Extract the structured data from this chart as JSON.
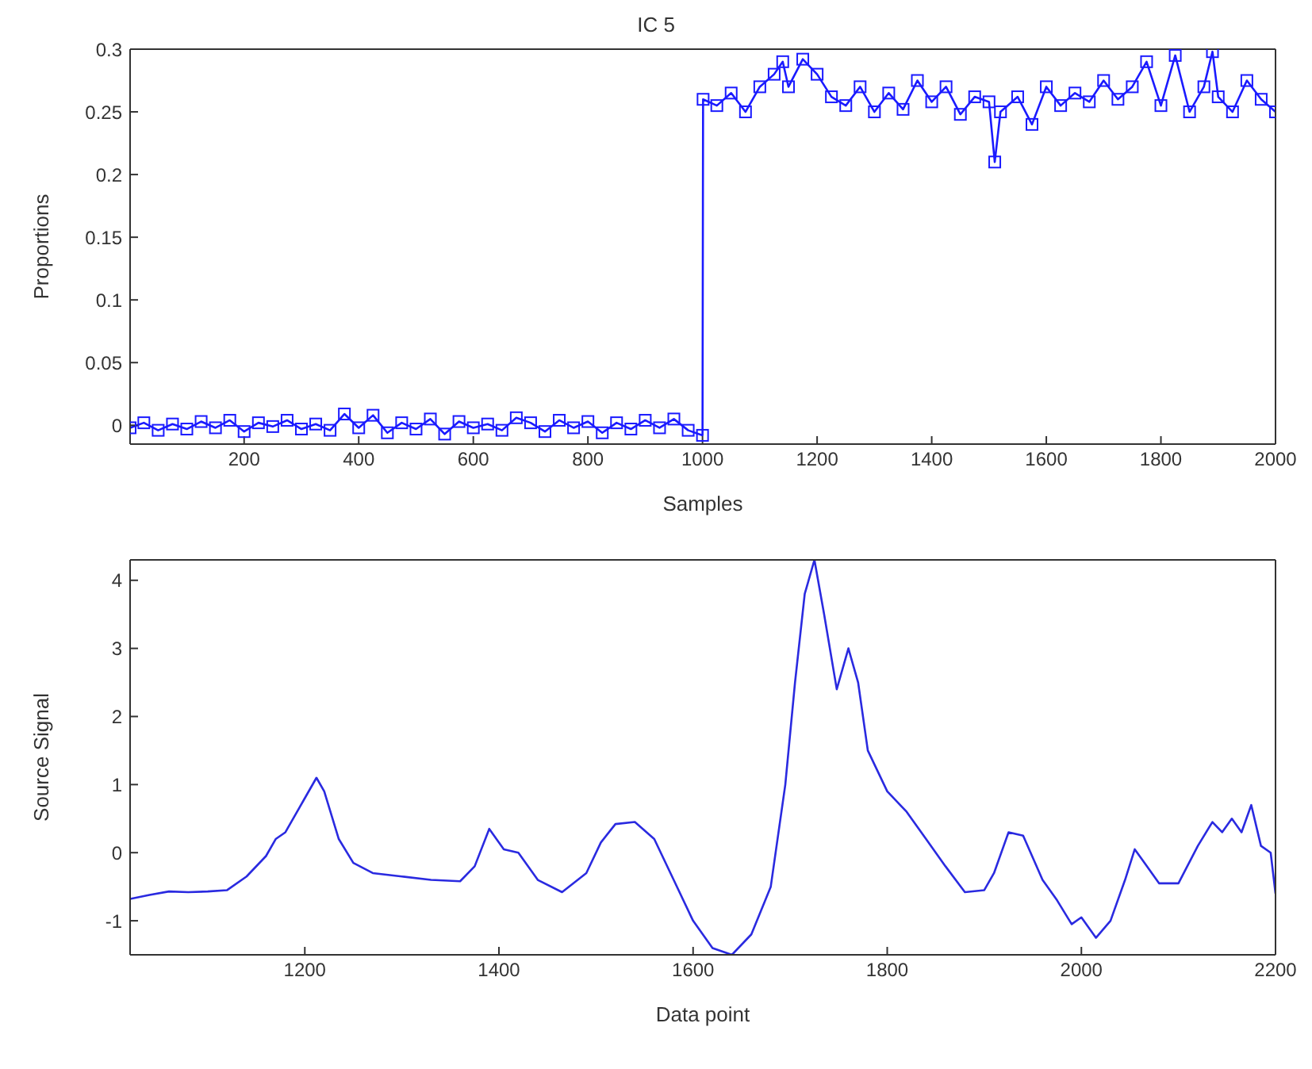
{
  "chart_data": [
    {
      "type": "line",
      "title": "IC 5",
      "xlabel": "Samples",
      "ylabel": "Proportions",
      "marker": "square",
      "xlim": [
        1,
        2000
      ],
      "xticks": [
        200,
        400,
        600,
        800,
        1000,
        1200,
        1400,
        1600,
        1800,
        2000
      ],
      "ylim": [
        -0.015,
        0.3
      ],
      "yticks": [
        0,
        0.05,
        0.1,
        0.15,
        0.2,
        0.25,
        0.3
      ],
      "series": [
        {
          "color": "#1a1aff",
          "x": [
            1,
            25,
            50,
            75,
            100,
            125,
            150,
            175,
            200,
            225,
            250,
            275,
            300,
            325,
            350,
            375,
            400,
            425,
            450,
            475,
            500,
            525,
            550,
            575,
            600,
            625,
            650,
            675,
            700,
            725,
            750,
            775,
            800,
            825,
            850,
            875,
            900,
            925,
            950,
            975,
            1000,
            1001,
            1025,
            1050,
            1075,
            1100,
            1125,
            1140,
            1150,
            1175,
            1200,
            1225,
            1250,
            1275,
            1300,
            1325,
            1350,
            1375,
            1400,
            1425,
            1450,
            1475,
            1500,
            1510,
            1520,
            1550,
            1575,
            1600,
            1625,
            1650,
            1675,
            1700,
            1725,
            1750,
            1775,
            1800,
            1825,
            1850,
            1875,
            1890,
            1900,
            1925,
            1950,
            1975,
            2000
          ],
          "values": [
            -0.002,
            0.002,
            -0.004,
            0.001,
            -0.003,
            0.003,
            -0.002,
            0.004,
            -0.005,
            0.002,
            -0.001,
            0.004,
            -0.003,
            0.001,
            -0.004,
            0.009,
            -0.002,
            0.008,
            -0.006,
            0.002,
            -0.003,
            0.005,
            -0.007,
            0.003,
            -0.002,
            0.001,
            -0.004,
            0.006,
            0.002,
            -0.005,
            0.004,
            -0.002,
            0.003,
            -0.006,
            0.002,
            -0.003,
            0.004,
            -0.002,
            0.005,
            -0.004,
            -0.008,
            0.26,
            0.255,
            0.265,
            0.25,
            0.27,
            0.28,
            0.29,
            0.27,
            0.292,
            0.28,
            0.262,
            0.255,
            0.27,
            0.25,
            0.265,
            0.252,
            0.275,
            0.258,
            0.27,
            0.248,
            0.262,
            0.258,
            0.21,
            0.25,
            0.262,
            0.24,
            0.27,
            0.255,
            0.265,
            0.258,
            0.275,
            0.26,
            0.27,
            0.29,
            0.255,
            0.295,
            0.25,
            0.27,
            0.298,
            0.262,
            0.25,
            0.275,
            0.26,
            0.25
          ]
        }
      ]
    },
    {
      "type": "line",
      "xlabel": "Data point",
      "ylabel": "Source Signal",
      "xlim": [
        1020,
        2200
      ],
      "xticks": [
        1200,
        1400,
        1600,
        1800,
        2000,
        2200
      ],
      "ylim": [
        -1.5,
        4.3
      ],
      "yticks": [
        -1,
        0,
        1,
        2,
        3,
        4
      ],
      "series": [
        {
          "color": "#2a2ae0",
          "x": [
            1020,
            1040,
            1060,
            1080,
            1100,
            1120,
            1140,
            1160,
            1170,
            1180,
            1200,
            1212,
            1220,
            1235,
            1250,
            1270,
            1300,
            1330,
            1360,
            1375,
            1390,
            1405,
            1420,
            1440,
            1465,
            1490,
            1505,
            1520,
            1540,
            1560,
            1580,
            1600,
            1620,
            1640,
            1660,
            1680,
            1695,
            1705,
            1715,
            1725,
            1735,
            1748,
            1760,
            1770,
            1780,
            1800,
            1820,
            1840,
            1860,
            1880,
            1900,
            1910,
            1925,
            1940,
            1960,
            1975,
            1990,
            2000,
            2015,
            2030,
            2045,
            2055,
            2065,
            2080,
            2100,
            2120,
            2135,
            2145,
            2155,
            2165,
            2175,
            2185,
            2195,
            2200
          ],
          "values": [
            -0.68,
            -0.62,
            -0.57,
            -0.58,
            -0.57,
            -0.55,
            -0.35,
            -0.05,
            0.2,
            0.3,
            0.8,
            1.1,
            0.9,
            0.2,
            -0.15,
            -0.3,
            -0.35,
            -0.4,
            -0.42,
            -0.2,
            0.35,
            0.05,
            0.0,
            -0.4,
            -0.58,
            -0.3,
            0.15,
            0.42,
            0.45,
            0.2,
            -0.4,
            -1.0,
            -1.4,
            -1.5,
            -1.2,
            -0.5,
            1.0,
            2.5,
            3.8,
            4.3,
            3.5,
            2.4,
            3.0,
            2.5,
            1.5,
            0.9,
            0.6,
            0.2,
            -0.2,
            -0.58,
            -0.55,
            -0.3,
            0.3,
            0.25,
            -0.4,
            -0.7,
            -1.05,
            -0.95,
            -1.25,
            -1.0,
            -0.4,
            0.05,
            -0.15,
            -0.45,
            -0.45,
            0.1,
            0.45,
            0.3,
            0.5,
            0.3,
            0.7,
            0.1,
            0.0,
            -0.6
          ]
        }
      ]
    }
  ]
}
